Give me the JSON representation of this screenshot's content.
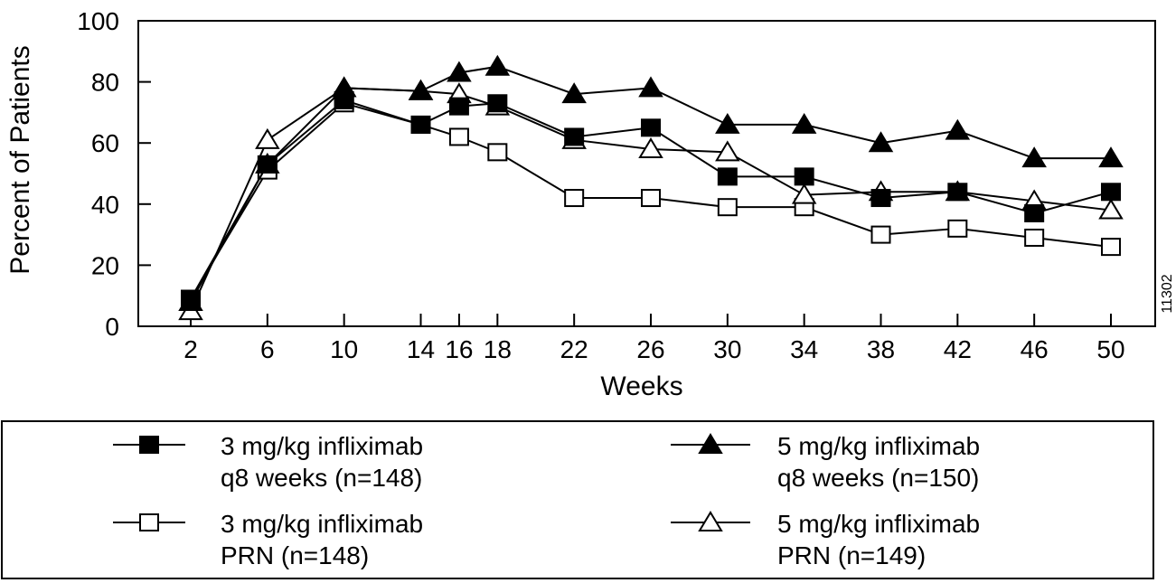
{
  "chart_data": {
    "type": "line",
    "xlabel": "Weeks",
    "ylabel": "Percent of Patients",
    "ylim": [
      0,
      100
    ],
    "yticks": [
      0,
      20,
      40,
      60,
      80,
      100
    ],
    "xticks": [
      2,
      6,
      10,
      14,
      16,
      18,
      22,
      26,
      30,
      34,
      38,
      42,
      46,
      50
    ],
    "figure_id": "11302",
    "grid": false,
    "legend_position": "bottom",
    "series": [
      {
        "name_lines": [
          "3 mg/kg infliximab",
          "q8 weeks (n=148)"
        ],
        "marker": "filled-square",
        "x": [
          2,
          6,
          10,
          14,
          16,
          18,
          22,
          26,
          30,
          34,
          38,
          42,
          46,
          50
        ],
        "y": [
          9,
          53,
          74,
          66,
          72,
          73,
          62,
          65,
          49,
          49,
          42,
          44,
          37,
          44
        ]
      },
      {
        "name_lines": [
          "5 mg/kg infliximab",
          "q8 weeks (n=150)"
        ],
        "marker": "filled-triangle",
        "x": [
          2,
          6,
          10,
          14,
          16,
          18,
          22,
          26,
          30,
          34,
          38,
          42,
          46,
          50
        ],
        "y": [
          8,
          53,
          78,
          77,
          83,
          85,
          76,
          78,
          66,
          66,
          60,
          64,
          55,
          55
        ]
      },
      {
        "name_lines": [
          "3 mg/kg infliximab",
          "PRN (n=148)"
        ],
        "marker": "open-square",
        "x": [
          2,
          6,
          10,
          14,
          16,
          18,
          22,
          26,
          30,
          34,
          38,
          42,
          46,
          50
        ],
        "y": [
          9,
          51,
          73,
          66,
          62,
          57,
          42,
          42,
          39,
          39,
          30,
          32,
          29,
          26
        ]
      },
      {
        "name_lines": [
          "5 mg/kg infliximab",
          "PRN (n=149)"
        ],
        "marker": "open-triangle",
        "x": [
          2,
          6,
          10,
          14,
          16,
          18,
          22,
          26,
          30,
          34,
          38,
          42,
          46,
          50
        ],
        "y": [
          5,
          61,
          78,
          77,
          76,
          72,
          61,
          58,
          57,
          43,
          44,
          44,
          41,
          38
        ]
      }
    ]
  }
}
